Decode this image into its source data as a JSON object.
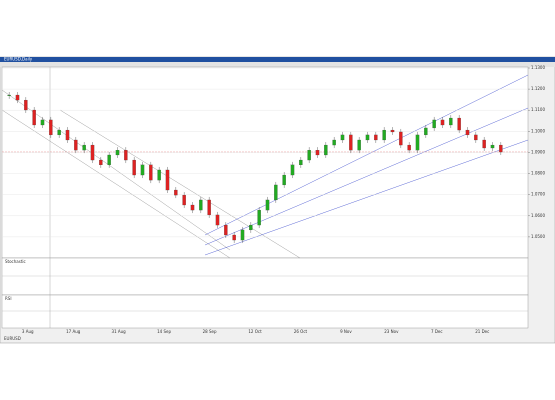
{
  "chart_data": {
    "type": "candle-line",
    "title": "EURUSD,Daily",
    "symbol": "EURUSD",
    "values": [
      1.1172,
      1.1148,
      1.1101,
      1.103,
      1.1054,
      1.0983,
      1.1006,
      1.0959,
      1.0911,
      1.0935,
      1.0864,
      1.0841,
      1.0888,
      1.0911,
      1.0864,
      1.0793,
      1.0841,
      1.0769,
      1.0817,
      1.0722,
      1.0698,
      1.0651,
      1.0627,
      1.0675,
      1.0604,
      1.0556,
      1.0509,
      1.0485,
      1.0533,
      1.0556,
      1.0627,
      1.0675,
      1.0746,
      1.0793,
      1.0841,
      1.0864,
      1.0911,
      1.0888,
      1.0935,
      1.0959,
      1.0983,
      1.0911,
      1.0959,
      1.0983,
      1.0959,
      1.1006,
      1.0997,
      1.0935,
      1.0911,
      1.0983,
      1.1016,
      1.1054,
      1.103,
      1.1063,
      1.1006,
      1.0983,
      1.0959,
      1.0921,
      1.0935,
      1.0902
    ],
    "up_color": "#22aa22",
    "down_color": "#dd2222",
    "ylim": [
      1.04,
      1.13
    ],
    "yticks": [
      {
        "value": 1.13,
        "label": "1.1300"
      },
      {
        "value": 1.12,
        "label": "1.1200"
      },
      {
        "value": 1.11,
        "label": "1.1100"
      },
      {
        "value": 1.1,
        "label": "1.1000"
      },
      {
        "value": 1.09,
        "label": "1.0900"
      },
      {
        "value": 1.08,
        "label": "1.0800"
      },
      {
        "value": 1.07,
        "label": "1.0700"
      },
      {
        "value": 1.06,
        "label": "1.0600"
      },
      {
        "value": 1.05,
        "label": "1.0500"
      }
    ],
    "xlabels": [
      "3 Aug",
      "17 Aug",
      "31 Aug",
      "14 Sep",
      "28 Sep",
      "12 Oct",
      "26 Oct",
      "9 Nov",
      "23 Nov",
      "7 Dec",
      "21 Dec"
    ],
    "grid": true,
    "oscillator_title": "Stochastic",
    "rsi_title": "RSI"
  }
}
